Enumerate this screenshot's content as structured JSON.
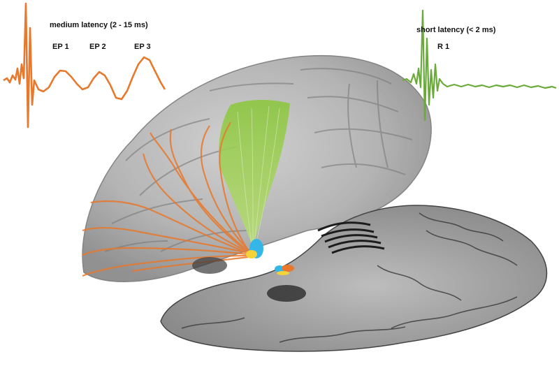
{
  "labels": {
    "medium_latency": "medium latency (2 - 15 ms)",
    "ep1": "EP 1",
    "ep2": "EP 2",
    "ep3": "EP 3",
    "short_latency": "short latency (< 2 ms)",
    "r1": "R 1"
  },
  "colors": {
    "medium_trace": "#e8782c",
    "short_trace": "#6aaa3a",
    "orange_tracts": "#e8782c",
    "green_tract": "#8cc63f",
    "target_cyan": "#35b6e8",
    "target_yellow": "#f3d23a",
    "brain_gray": "#9a9a9a",
    "slice_dark": "#2a2a2a"
  },
  "icons": {
    "brain": "brain-3d-render",
    "slice": "axial-histology-slice"
  }
}
